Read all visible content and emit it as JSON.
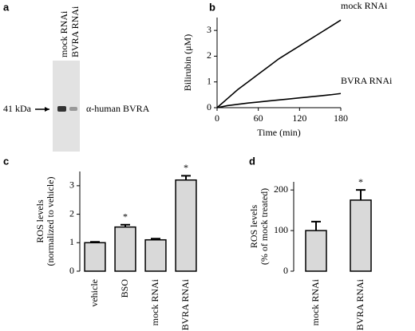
{
  "blot": {
    "panel": "a",
    "lanes": [
      "mock RNAi",
      "BVRA RNAi"
    ],
    "size_label": "41 kDa",
    "band_label": "α-human BVRA"
  },
  "chart_data": [
    {
      "type": "line",
      "panel": "b",
      "ylabel": "Bilirubin (μM)",
      "xlabel": "Time (min)",
      "x": [
        0,
        15,
        30,
        45,
        60,
        75,
        90,
        105,
        120,
        135,
        150,
        165,
        180
      ],
      "series": [
        {
          "name": "mock RNAi",
          "color": "#000000",
          "values": [
            0,
            0.35,
            0.7,
            1.0,
            1.3,
            1.6,
            1.9,
            2.15,
            2.4,
            2.65,
            2.9,
            3.15,
            3.4
          ]
        },
        {
          "name": "BVRA RNAi",
          "color": "#000000",
          "values": [
            0,
            0.08,
            0.13,
            0.18,
            0.22,
            0.26,
            0.3,
            0.34,
            0.38,
            0.42,
            0.46,
            0.5,
            0.55
          ]
        }
      ],
      "xlim": [
        0,
        180
      ],
      "xticks": [
        0,
        60,
        120,
        180
      ],
      "ylim": [
        0,
        3.5
      ],
      "yticks": [
        0,
        1,
        2,
        3
      ]
    },
    {
      "type": "bar",
      "panel": "c",
      "ylabel": [
        "ROS levels",
        "(normalized to vehicle)"
      ],
      "categories": [
        "vehicle",
        "BSO",
        "mock RNAi",
        "BVRA RNAi"
      ],
      "values": [
        1.0,
        1.55,
        1.1,
        3.2
      ],
      "errors": [
        0.03,
        0.08,
        0.04,
        0.15
      ],
      "significant": [
        false,
        true,
        false,
        true
      ],
      "marker": "*",
      "color": "#d9d9d9",
      "ylim": [
        0,
        3.5
      ],
      "yticks": [
        0,
        1,
        2,
        3
      ]
    },
    {
      "type": "bar",
      "panel": "d",
      "ylabel": [
        "ROS levels",
        "(% of mock treated)"
      ],
      "categories": [
        "mock RNAi",
        "BVRA RNAi"
      ],
      "values": [
        100,
        175
      ],
      "errors": [
        22,
        25
      ],
      "significant": [
        false,
        true
      ],
      "marker": "*",
      "color": "#d9d9d9",
      "ylim": [
        0,
        220
      ],
      "yticks": [
        0,
        100,
        200
      ]
    }
  ]
}
